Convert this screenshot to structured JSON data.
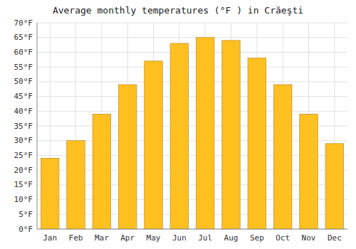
{
  "chart_data": {
    "type": "bar",
    "title": "Average monthly temperatures (°F ) in Crăeşti",
    "categories": [
      "Jan",
      "Feb",
      "Mar",
      "Apr",
      "May",
      "Jun",
      "Jul",
      "Aug",
      "Sep",
      "Oct",
      "Nov",
      "Dec"
    ],
    "values": [
      24,
      30,
      39,
      49,
      57,
      63,
      65,
      64,
      58,
      49,
      39,
      29
    ],
    "color": "#FFC020",
    "ylim": [
      0,
      70
    ],
    "yticks": [
      {
        "value": 0,
        "label": "0°F"
      },
      {
        "value": 5,
        "label": "5°F"
      },
      {
        "value": 10,
        "label": "10°F"
      },
      {
        "value": 15,
        "label": "15°F"
      },
      {
        "value": 20,
        "label": "20°F"
      },
      {
        "value": 25,
        "label": "25°F"
      },
      {
        "value": 30,
        "label": "30°F"
      },
      {
        "value": 35,
        "label": "35°F"
      },
      {
        "value": 40,
        "label": "40°F"
      },
      {
        "value": 45,
        "label": "45°F"
      },
      {
        "value": 50,
        "label": "50°F"
      },
      {
        "value": 55,
        "label": "55°F"
      },
      {
        "value": 60,
        "label": "60°F"
      },
      {
        "value": 65,
        "label": "65°F"
      },
      {
        "value": 70,
        "label": "70°F"
      }
    ],
    "grid": true
  }
}
